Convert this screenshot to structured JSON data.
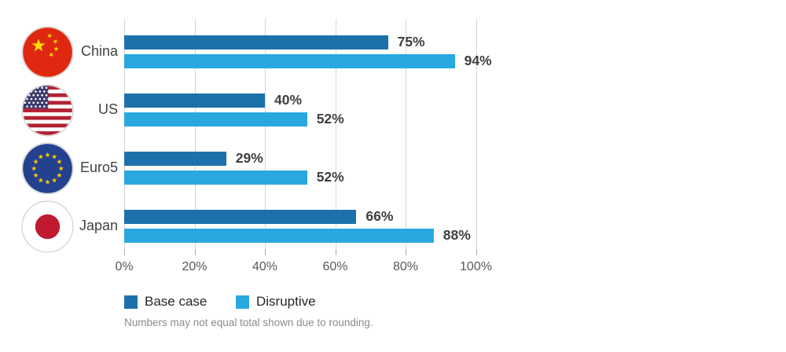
{
  "chart_data": {
    "type": "bar",
    "orientation": "horizontal",
    "title": "",
    "categories": [
      "China",
      "US",
      "Euro5",
      "Japan"
    ],
    "category_icons": [
      "china-flag-icon",
      "us-flag-icon",
      "eu-flag-icon",
      "japan-flag-icon"
    ],
    "series": [
      {
        "name": "Base case",
        "color": "#1d71aa",
        "values": [
          75,
          40,
          29,
          66
        ]
      },
      {
        "name": "Disruptive",
        "color": "#29a8e0",
        "values": [
          94,
          52,
          52,
          88
        ]
      }
    ],
    "value_suffix": "%",
    "data_labels": [
      [
        "75%",
        "40%",
        "29%",
        "66%"
      ],
      [
        "94%",
        "52%",
        "52%",
        "88%"
      ]
    ],
    "xlim": [
      0,
      100
    ],
    "x_ticks": [
      {
        "value": 0,
        "label": "0%"
      },
      {
        "value": 20,
        "label": "20%"
      },
      {
        "value": 40,
        "label": "40%"
      },
      {
        "value": 60,
        "label": "60%"
      },
      {
        "value": 80,
        "label": "80%"
      },
      {
        "value": 100,
        "label": "100%"
      }
    ],
    "grid": "vertical",
    "legend_position": "bottom-left"
  },
  "legend": {
    "items": [
      {
        "label": "Base case",
        "color": "#1d71aa"
      },
      {
        "label": "Disruptive",
        "color": "#29a8e0"
      }
    ]
  },
  "footnote": "Numbers may not equal total shown due to rounding.",
  "colors": {
    "base_case": "#1d71aa",
    "disruptive": "#29a8e0",
    "gridline": "#d6d6d6",
    "tick_text": "#595959",
    "category_text": "#414141",
    "value_text": "#3f3f3f",
    "footnote_text": "#8c8c8c",
    "china_red": "#de2910",
    "china_star_yellow": "#ffde00",
    "us_stripe_red": "#b22234",
    "us_canton_blue": "#3c3b6e",
    "eu_blue": "#24418e",
    "eu_star_yellow": "#ffcc00",
    "japan_red": "#c01a31"
  }
}
